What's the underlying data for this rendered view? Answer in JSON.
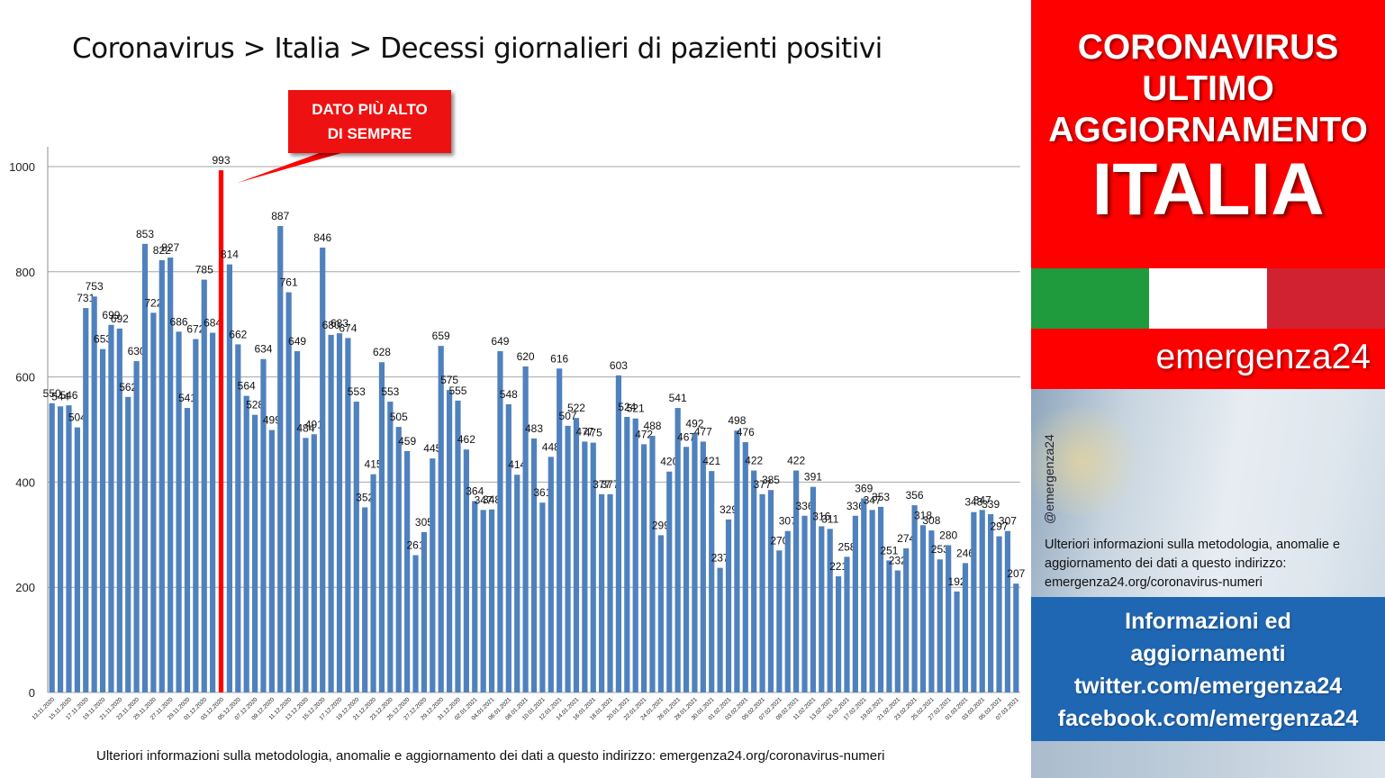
{
  "title": "Coronavirus > Italia > Decessi giornalieri di pazienti positivi",
  "callout": {
    "line1": "DATO PIÙ ALTO",
    "line2": "DI SEMPRE"
  },
  "footnote": "Ulteriori informazioni sulla metodologia, anomalie e aggiornamento dei dati a questo indirizzo: emergenza24.org/coronavirus-numeri",
  "sidebar": {
    "header_line1": "CORONAVIRUS",
    "header_line2": "ULTIMO",
    "header_line3": "AGGIORNAMENTO",
    "header_country": "ITALIA",
    "brand": "emergenza24",
    "handle": "@emergenza24",
    "info_text": "Ulteriori informazioni sulla metodologia, anomalie e aggiornamento dei dati a questo indirizzo: emergenza24.org/coronavirus-numeri",
    "links": [
      "Informazioni ed",
      "aggiornamenti",
      "twitter.com/emergenza24",
      "facebook.com/emergenza24"
    ]
  },
  "colors": {
    "bar": "#4f81bd",
    "highlight": "#ff0000",
    "header_red": "#ff0000",
    "links_blue": "#1f67b3"
  },
  "chart_data": {
    "type": "bar",
    "title": "Coronavirus > Italia > Decessi giornalieri di pazienti positivi",
    "xlabel": "",
    "ylabel": "",
    "ylim": [
      0,
      1000
    ],
    "yticks": [
      0,
      200,
      400,
      600,
      800,
      1000
    ],
    "grid": true,
    "highlight_value": 993,
    "tick_labels": [
      "13.11.2020",
      "15.11.2020",
      "17.11.2020",
      "19.11.2020",
      "21.11.2020",
      "23.11.2020",
      "25.11.2020",
      "27.11.2020",
      "29.11.2020",
      "01.12.2020",
      "03.12.2020",
      "05.12.2020",
      "07.12.2020",
      "09.12.2020",
      "11.12.2020",
      "13.12.2020",
      "15.12.2020",
      "17.12.2020",
      "19.12.2020",
      "21.12.2020",
      "23.12.2020",
      "25.12.2020",
      "27.12.2020",
      "29.12.2020",
      "31.12.2020",
      "02.01.2021",
      "04.01.2021",
      "06.01.2021",
      "08.01.2021",
      "10.01.2021",
      "12.01.2021",
      "14.01.2021",
      "16.01.2021",
      "18.01.2021",
      "20.01.2021",
      "22.01.2021",
      "24.01.2021",
      "26.01.2021",
      "28.01.2021",
      "30.01.2021",
      "01.02.2021",
      "03.02.2021",
      "05.02.2021",
      "07.02.2021",
      "09.02.2021",
      "11.02.2021",
      "13.02.2021",
      "15.02.2021",
      "17.02.2021",
      "19.02.2021",
      "21.02.2021",
      "23.02.2021",
      "25.02.2021",
      "27.02.2021",
      "01.03.2021",
      "03.03.2021",
      "05.03.2021",
      "07.03.2021"
    ],
    "values": [
      550,
      544,
      546,
      504,
      731,
      753,
      653,
      699,
      692,
      562,
      630,
      853,
      722,
      822,
      827,
      686,
      541,
      672,
      785,
      684,
      993,
      814,
      662,
      564,
      528,
      634,
      499,
      887,
      761,
      649,
      484,
      491,
      846,
      680,
      683,
      674,
      553,
      352,
      415,
      628,
      553,
      505,
      459,
      261,
      305,
      445,
      659,
      575,
      555,
      462,
      364,
      347,
      348,
      649,
      548,
      414,
      620,
      483,
      361,
      448,
      616,
      507,
      522,
      477,
      475,
      377,
      377,
      603,
      524,
      521,
      472,
      488,
      299,
      420,
      541,
      467,
      492,
      477,
      421,
      237,
      329,
      498,
      476,
      422,
      377,
      385,
      270,
      307,
      422,
      336,
      391,
      316,
      311,
      221,
      258,
      336,
      369,
      347,
      353,
      251,
      232,
      274,
      356,
      318,
      308,
      253,
      280,
      192,
      246,
      343,
      347,
      339,
      297,
      307,
      207
    ]
  }
}
